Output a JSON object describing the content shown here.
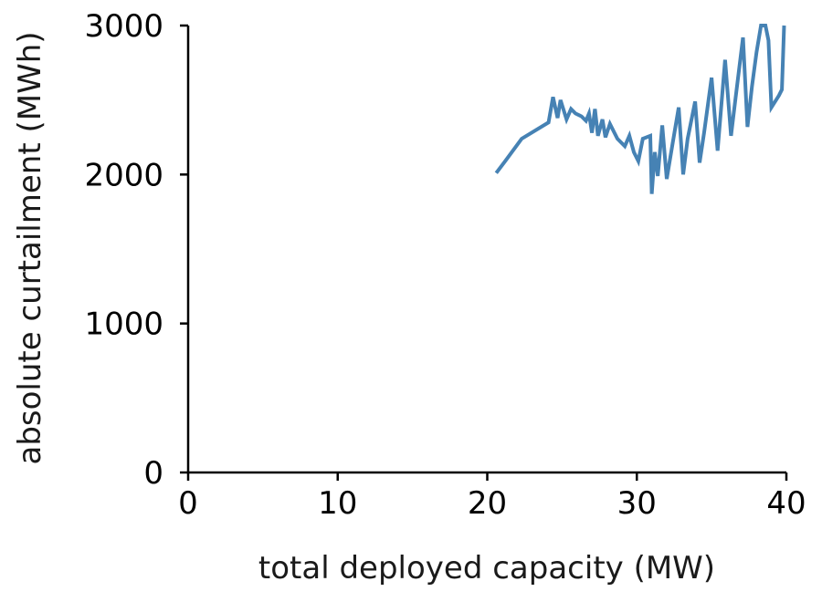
{
  "chart_data": {
    "type": "line",
    "title": "",
    "xlabel": "total deployed capacity (MW)",
    "ylabel": "absolute curtailment (MWh)",
    "xlim": [
      0,
      40
    ],
    "ylim": [
      0,
      3000
    ],
    "xticks": [
      "0",
      "10",
      "20",
      "30",
      "40"
    ],
    "yticks": [
      "0",
      "1000",
      "2000",
      "3000"
    ],
    "grid": false,
    "legend": "none",
    "series": [
      {
        "color": "#4682b4",
        "x": [
          20.6,
          21.2,
          22.3,
          24.1,
          24.4,
          24.7,
          24.9,
          25.3,
          25.6,
          25.9,
          26.3,
          26.6,
          26.8,
          27.0,
          27.2,
          27.4,
          27.7,
          27.9,
          28.2,
          28.7,
          29.2,
          29.5,
          29.8,
          30.1,
          30.4,
          30.9,
          31.0,
          31.2,
          31.4,
          31.7,
          32.0,
          32.4,
          32.8,
          33.1,
          33.4,
          33.9,
          34.2,
          34.5,
          35.0,
          35.4,
          35.9,
          36.3,
          36.6,
          37.1,
          37.4,
          37.7,
          38.0,
          38.3,
          38.6,
          38.8,
          39.0,
          39.5,
          39.7,
          39.85
        ],
        "y": [
          2010,
          2090,
          2240,
          2350,
          2520,
          2380,
          2500,
          2370,
          2440,
          2410,
          2390,
          2360,
          2410,
          2280,
          2440,
          2260,
          2370,
          2250,
          2340,
          2240,
          2190,
          2260,
          2150,
          2090,
          2240,
          2260,
          1870,
          2150,
          1990,
          2330,
          1970,
          2210,
          2450,
          2000,
          2240,
          2490,
          2080,
          2280,
          2650,
          2160,
          2770,
          2260,
          2510,
          2920,
          2320,
          2590,
          2820,
          3000,
          3000,
          2900,
          2450,
          2530,
          2570,
          3000
        ]
      }
    ]
  }
}
